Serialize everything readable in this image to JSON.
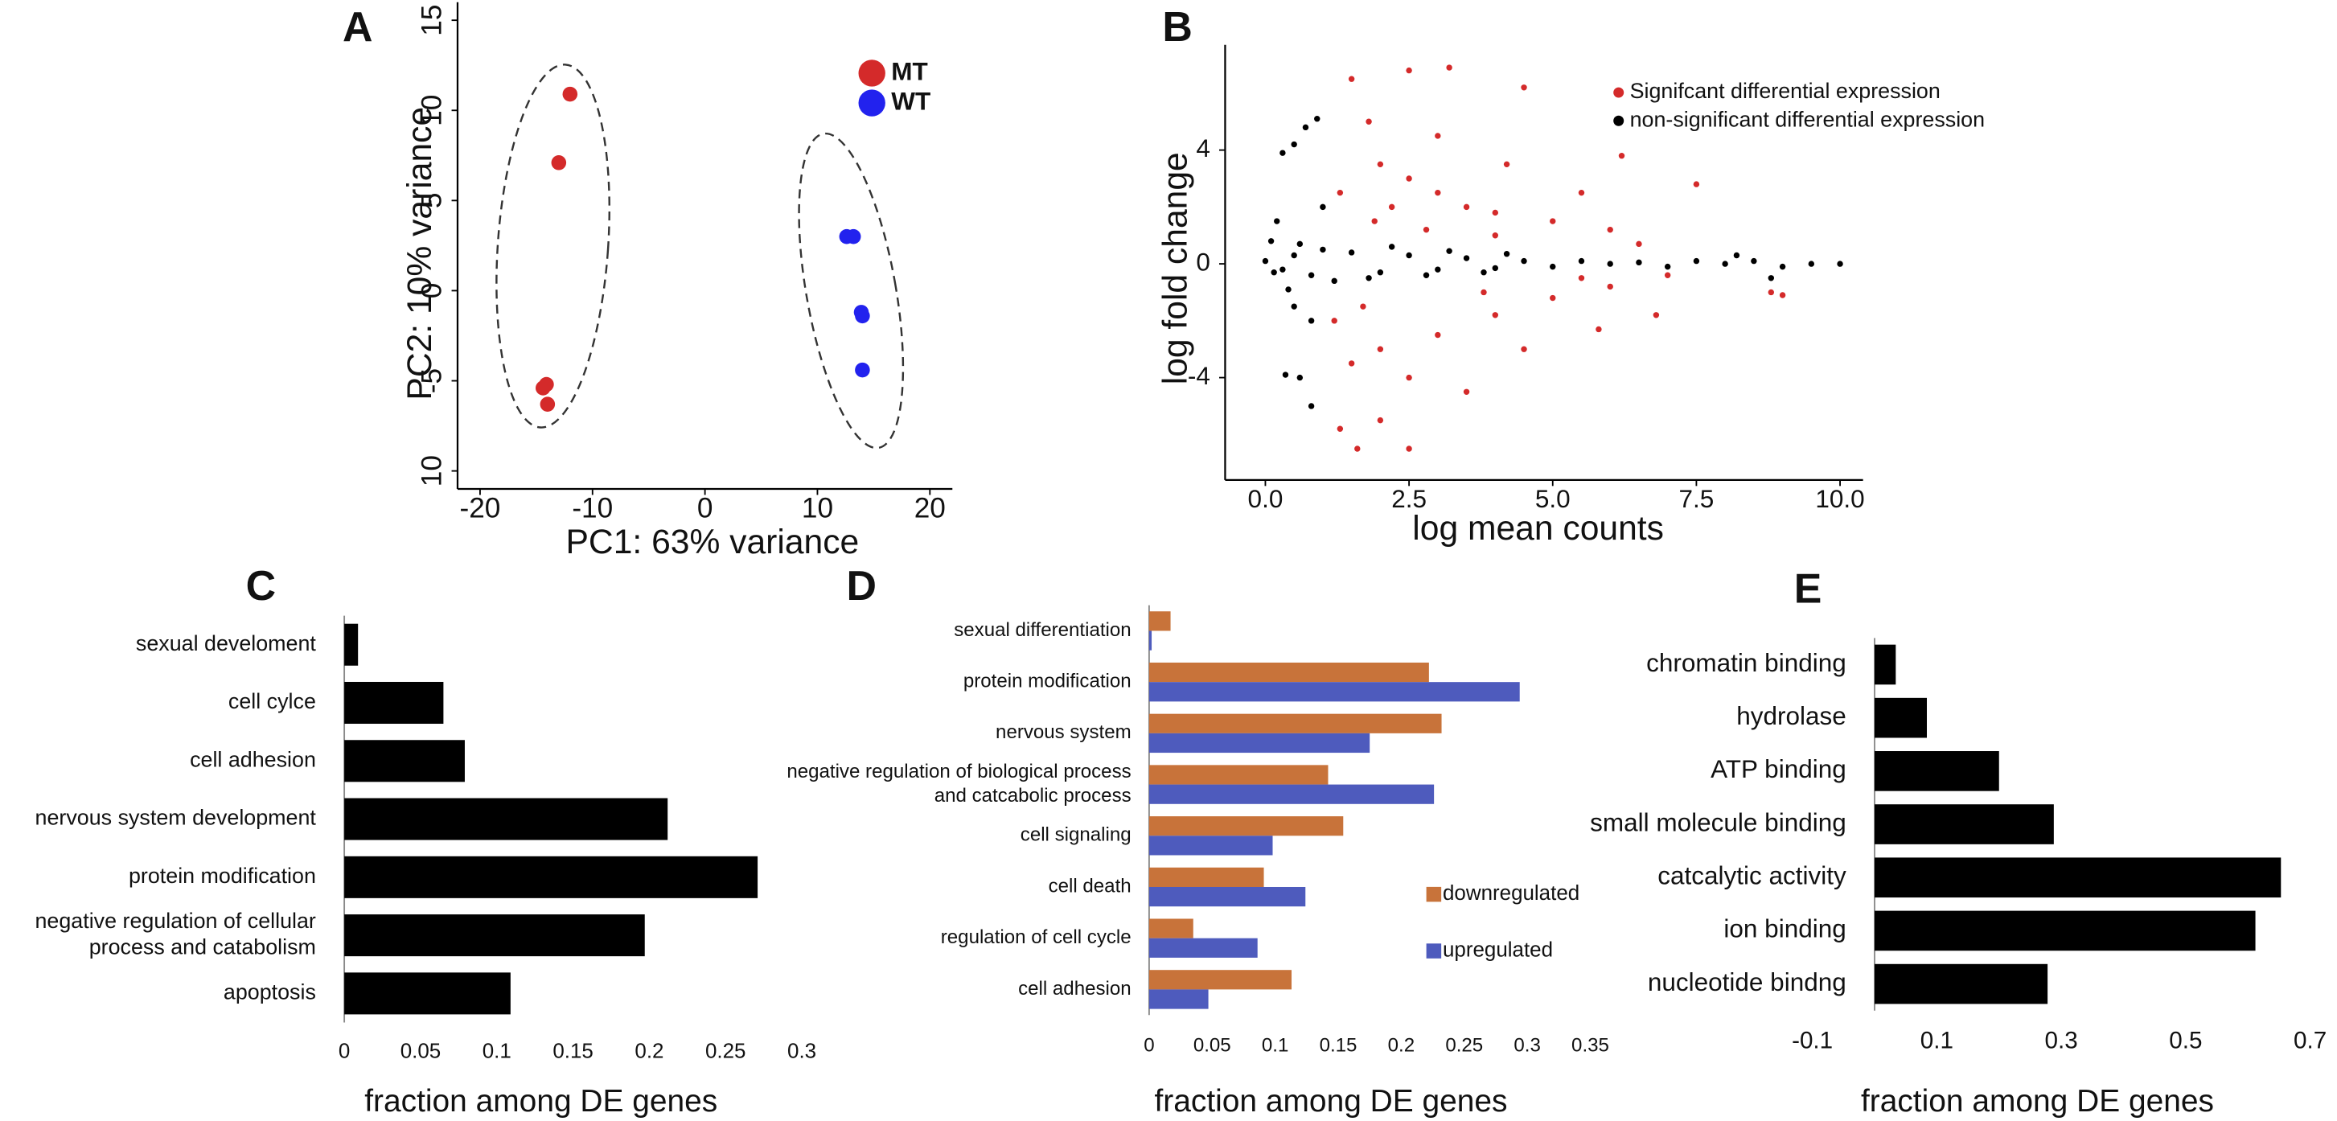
{
  "chart_data": [
    {
      "type": "scatter",
      "panel": "A",
      "xlabel": "PC1: 63% variance",
      "ylabel": "PC2: 10% variance",
      "xlim": [
        -22,
        22
      ],
      "ylim": [
        -11,
        16
      ],
      "xticks": [
        -20,
        -10,
        0,
        10,
        20
      ],
      "yticks": [
        15,
        10,
        5,
        0,
        -5,
        {
          "value": -10,
          "label": "10"
        }
      ],
      "series": [
        {
          "name": "MT",
          "color": "#d42a2a",
          "x": [
            -12,
            -13,
            -14.4,
            -14.1,
            -14
          ],
          "y": [
            10.9,
            7.1,
            -5.4,
            -5.2,
            -6.3
          ]
        },
        {
          "name": "WT",
          "color": "#2222ee",
          "x": [
            12.6,
            13.2,
            13.9,
            14,
            14
          ],
          "y": [
            3,
            3,
            -1.2,
            -1.4,
            -4.4
          ]
        }
      ]
    },
    {
      "type": "scatter",
      "panel": "B",
      "xlabel": "log mean counts",
      "ylabel": "log fold change",
      "xlim": [
        -0.7,
        10.4
      ],
      "ylim": [
        -7.6,
        7.7
      ],
      "xticks": [
        {
          "value": 0,
          "label": "0.0"
        },
        {
          "value": 2.5,
          "label": "2.5"
        },
        {
          "value": 5,
          "label": "5.0"
        },
        {
          "value": 7.5,
          "label": "7.5"
        },
        {
          "value": 10,
          "label": "10.0"
        }
      ],
      "yticks": [
        4,
        0,
        -4
      ],
      "series": [
        {
          "name": "Signifcant differential expression",
          "color": "#d42a2a",
          "x": [
            1.5,
            2.5,
            3.2,
            4.5,
            1.8,
            2,
            2.5,
            3,
            3.5,
            4,
            5,
            6,
            6.5,
            5.5,
            4.2,
            3,
            1.3,
            2.2,
            7,
            6,
            5,
            4,
            3,
            2,
            1.5,
            2.5,
            3.5,
            4.5,
            2,
            1.6,
            2.5,
            1.3,
            8.8,
            9,
            7.5,
            6.2,
            1.2,
            1.7,
            3.8,
            5.5,
            4,
            2.8,
            1.9,
            6.8,
            5.8
          ],
          "y": [
            6.5,
            6.8,
            6.9,
            6.2,
            5,
            3.5,
            3,
            2.5,
            2,
            1.8,
            1.5,
            1.2,
            0.7,
            2.5,
            3.5,
            4.5,
            2.5,
            2,
            -0.4,
            -0.8,
            -1.2,
            -1.8,
            -2.5,
            -3,
            -3.5,
            -4,
            -4.5,
            -3,
            -5.5,
            -6.5,
            -6.5,
            -5.8,
            -1,
            -1.1,
            2.8,
            3.8,
            -2,
            -1.5,
            -1,
            -0.5,
            1,
            1.2,
            1.5,
            -1.8,
            -2.3
          ]
        },
        {
          "name": "non-significant differential expression",
          "color": "#000000",
          "x": [
            0,
            0.3,
            0.5,
            0.8,
            1,
            1.2,
            1.5,
            2,
            2.5,
            3,
            3.5,
            4,
            4.5,
            5,
            5.5,
            6,
            6.5,
            7,
            7.5,
            8,
            8.5,
            9,
            9.5,
            10,
            0.3,
            0.5,
            0.7,
            0.9,
            0.35,
            0.6,
            0.8,
            0.2,
            0.5,
            1,
            0.8,
            0.1,
            0.4,
            8.2,
            8.8,
            1.8,
            2.2,
            2.8,
            3.2,
            3.8,
            4.2,
            0.15,
            0.6
          ],
          "y": [
            0.1,
            -0.2,
            0.3,
            -0.4,
            0.5,
            -0.6,
            0.4,
            -0.3,
            0.3,
            -0.2,
            0.2,
            -0.15,
            0.1,
            -0.1,
            0.1,
            0,
            0.05,
            -0.1,
            0.1,
            0,
            0.1,
            -0.1,
            0,
            0,
            3.9,
            4.2,
            4.8,
            5.1,
            -3.9,
            -4,
            -5,
            1.5,
            -1.5,
            2,
            -2,
            0.8,
            -0.9,
            0.3,
            -0.5,
            -0.5,
            0.6,
            -0.4,
            0.45,
            -0.3,
            0.35,
            -0.3,
            0.7
          ]
        }
      ]
    },
    {
      "type": "hbar",
      "panel": "C",
      "xlabel": "fraction among DE genes",
      "color": "#000000",
      "categories": [
        "sexual develoment",
        "cell cylce",
        "cell adhesion",
        "nervous system development",
        "protein modification",
        [
          "negative regulation of cellular",
          "process and catabolism"
        ],
        "apoptosis"
      ],
      "values": [
        0.009,
        0.065,
        0.079,
        0.212,
        0.271,
        0.197,
        0.109
      ],
      "xlim": [
        0,
        0.3
      ],
      "xticks": [
        0,
        0.05,
        0.1,
        0.15,
        0.2,
        0.25,
        0.3
      ]
    },
    {
      "type": "hbar",
      "panel": "D",
      "xlabel": "fraction among DE genes",
      "categories": [
        "sexual differentiation",
        "protein modification",
        "nervous system",
        [
          "negative regulation of biological process",
          "and catcabolic process"
        ],
        "cell signaling",
        "cell death",
        "regulation of cell cycle",
        "cell adhesion"
      ],
      "series": [
        {
          "name": "downregulated",
          "color": "#c8733a",
          "values": [
            0.017,
            0.222,
            0.232,
            0.142,
            0.154,
            0.091,
            0.035,
            0.113
          ]
        },
        {
          "name": "upregulated",
          "color": "#4e5bbd",
          "values": [
            0.002,
            0.294,
            0.175,
            0.226,
            0.098,
            0.124,
            0.086,
            0.047
          ]
        }
      ],
      "xlim": [
        0,
        0.35
      ],
      "xticks": [
        0,
        0.05,
        0.1,
        0.15,
        0.2,
        0.25,
        0.3,
        0.35
      ]
    },
    {
      "type": "hbar",
      "panel": "E",
      "xlabel": "fraction among DE genes",
      "color": "#000000",
      "categories": [
        "chromatin binding",
        "hydrolase",
        "ATP binding",
        "small molecule binding",
        "catcalytic activity",
        "ion binding",
        "nucleotide bindng"
      ],
      "values": [
        0.034,
        0.084,
        0.2,
        0.288,
        0.653,
        0.612,
        0.278
      ],
      "xlim": [
        -0.1,
        0.7
      ],
      "xticks": [
        -0.1,
        0.1,
        0.3,
        0.5,
        0.7
      ]
    }
  ]
}
